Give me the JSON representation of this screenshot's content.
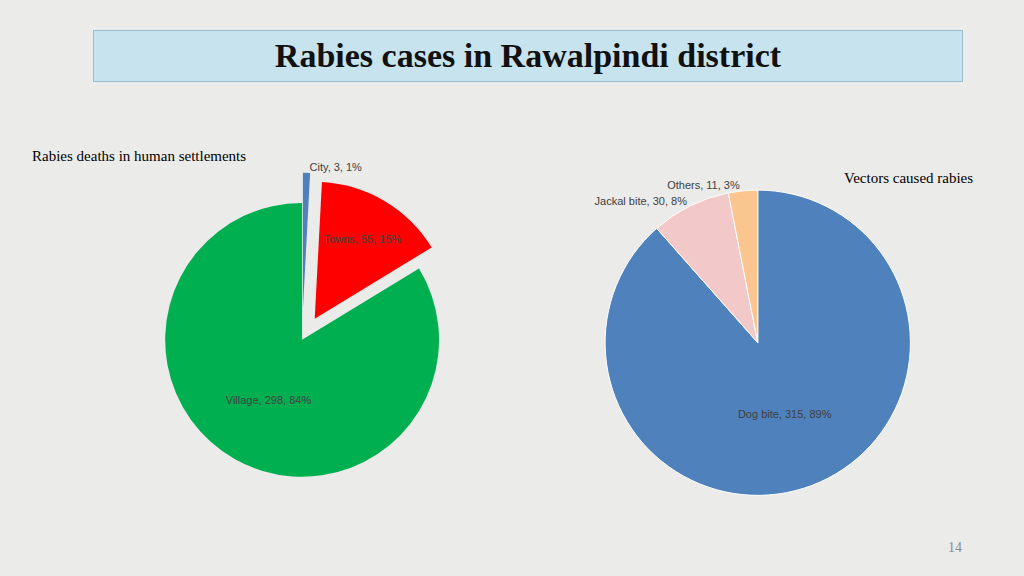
{
  "title": "Rabies cases in Rawalpindi district",
  "page_number": 14,
  "chart_data": [
    {
      "type": "pie",
      "title": "Rabies deaths in human settlements",
      "categories": [
        "City",
        "Towns",
        "Village"
      ],
      "values": [
        3,
        55,
        298
      ],
      "value_labels": [
        "City, 3, 1%",
        "Towns, 55, 15%",
        "Village, 298, 84%"
      ],
      "colors": [
        "#4f81bd",
        "#ff0000",
        "#00b050"
      ],
      "data_labels": true
    },
    {
      "type": "pie",
      "title": "Vectors caused rabies",
      "categories": [
        "Dog bite",
        "Jackal bite",
        "Others"
      ],
      "values": [
        315,
        30,
        11
      ],
      "value_labels": [
        "Dog bite, 315, 89%",
        "Jackal bite, 30, 8%",
        "Others, 11, 3%"
      ],
      "colors": [
        "#4f81bd",
        "#f2c8c8",
        "#fbc58f"
      ],
      "data_labels": true
    }
  ]
}
